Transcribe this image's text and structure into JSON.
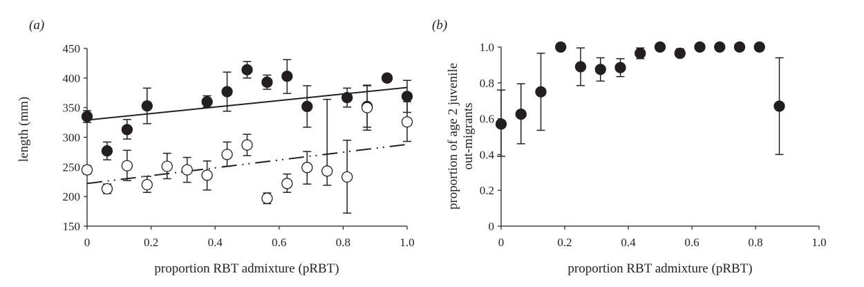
{
  "chart_data": [
    {
      "panel_label": "(a)",
      "type": "scatter",
      "xlabel": "proportion RBT admixture (pRBT)",
      "ylabel": "length (mm)",
      "xlim": [
        0,
        1.0
      ],
      "ylim": [
        150,
        450
      ],
      "xticks": [
        "0",
        "0.2",
        "0.4",
        "0.6",
        "0.8",
        "1.0"
      ],
      "yticks": [
        "150",
        "200",
        "250",
        "300",
        "350",
        "400",
        "450"
      ],
      "grid": false,
      "series": [
        {
          "marker": "filled-circle",
          "color": "#231f20",
          "points": [
            {
              "x": 0.0,
              "y": 335,
              "lo": 325,
              "hi": 345
            },
            {
              "x": 0.0625,
              "y": 277,
              "lo": 262,
              "hi": 292
            },
            {
              "x": 0.125,
              "y": 313,
              "lo": 297,
              "hi": 330
            },
            {
              "x": 0.1875,
              "y": 353,
              "lo": 323,
              "hi": 383
            },
            {
              "x": 0.375,
              "y": 360,
              "lo": 351,
              "hi": 370
            },
            {
              "x": 0.4375,
              "y": 377,
              "lo": 344,
              "hi": 410
            },
            {
              "x": 0.5,
              "y": 414,
              "lo": 400,
              "hi": 428
            },
            {
              "x": 0.5625,
              "y": 393,
              "lo": 381,
              "hi": 405
            },
            {
              "x": 0.625,
              "y": 403,
              "lo": 374,
              "hi": 431
            },
            {
              "x": 0.6875,
              "y": 352,
              "lo": 317,
              "hi": 387
            },
            {
              "x": 0.8125,
              "y": 367,
              "lo": 351,
              "hi": 383
            },
            {
              "x": 0.875,
              "y": 352,
              "lo": 317,
              "hi": 387
            },
            {
              "x": 0.9375,
              "y": 400,
              "lo": 395,
              "hi": 406
            },
            {
              "x": 1.0,
              "y": 369,
              "lo": 342,
              "hi": 396
            }
          ],
          "trend": {
            "style": "solid",
            "x": [
              0,
              1.0
            ],
            "y": [
              329,
              384
            ]
          }
        },
        {
          "marker": "open-circle",
          "color": "#231f20",
          "points": [
            {
              "x": 0.0,
              "y": 245,
              "lo": 238,
              "hi": 252
            },
            {
              "x": 0.0625,
              "y": 213,
              "lo": 205,
              "hi": 221
            },
            {
              "x": 0.125,
              "y": 252,
              "lo": 227,
              "hi": 278
            },
            {
              "x": 0.1875,
              "y": 220,
              "lo": 207,
              "hi": 234
            },
            {
              "x": 0.25,
              "y": 251,
              "lo": 230,
              "hi": 273
            },
            {
              "x": 0.3125,
              "y": 245,
              "lo": 224,
              "hi": 266
            },
            {
              "x": 0.375,
              "y": 236,
              "lo": 211,
              "hi": 260
            },
            {
              "x": 0.4375,
              "y": 271,
              "lo": 251,
              "hi": 292
            },
            {
              "x": 0.5,
              "y": 287,
              "lo": 269,
              "hi": 305
            },
            {
              "x": 0.5625,
              "y": 197,
              "lo": 188,
              "hi": 206
            },
            {
              "x": 0.625,
              "y": 222,
              "lo": 207,
              "hi": 238
            },
            {
              "x": 0.6875,
              "y": 249,
              "lo": 221,
              "hi": 276
            },
            {
              "x": 0.75,
              "y": 243,
              "lo": 219,
              "hi": 364
            },
            {
              "x": 0.8125,
              "y": 233,
              "lo": 172,
              "hi": 295
            },
            {
              "x": 0.875,
              "y": 350,
              "lo": 312,
              "hi": 388
            },
            {
              "x": 1.0,
              "y": 326,
              "lo": 293,
              "hi": 360
            }
          ],
          "trend": {
            "style": "dash-dot-dot",
            "x": [
              0,
              1.0
            ],
            "y": [
              222,
              288
            ]
          }
        }
      ]
    },
    {
      "panel_label": "(b)",
      "type": "scatter",
      "xlabel": "proportion RBT admixture (pRBT)",
      "ylabel": [
        "proportion of age 2 juvenile",
        "out-migrants"
      ],
      "xlim": [
        0,
        1.0
      ],
      "ylim": [
        0,
        1.0
      ],
      "xticks": [
        "0",
        "0.2",
        "0.4",
        "0.6",
        "0.8",
        "1.0"
      ],
      "yticks": [
        "0",
        "0.2",
        "0.4",
        "0.6",
        "0.8",
        "1.0"
      ],
      "grid": false,
      "series": [
        {
          "marker": "filled-circle",
          "color": "#231f20",
          "points": [
            {
              "x": 0.0,
              "y": 0.57,
              "lo": 0.39,
              "hi": 0.76
            },
            {
              "x": 0.0625,
              "y": 0.625,
              "lo": 0.46,
              "hi": 0.795
            },
            {
              "x": 0.125,
              "y": 0.75,
              "lo": 0.535,
              "hi": 0.965
            },
            {
              "x": 0.1875,
              "y": 1.0,
              "lo": 1.0,
              "hi": 1.0
            },
            {
              "x": 0.25,
              "y": 0.89,
              "lo": 0.785,
              "hi": 0.995
            },
            {
              "x": 0.3125,
              "y": 0.875,
              "lo": 0.81,
              "hi": 0.94
            },
            {
              "x": 0.375,
              "y": 0.885,
              "lo": 0.835,
              "hi": 0.935
            },
            {
              "x": 0.4375,
              "y": 0.965,
              "lo": 0.935,
              "hi": 0.995
            },
            {
              "x": 0.5,
              "y": 1.0,
              "lo": 1.0,
              "hi": 1.0
            },
            {
              "x": 0.5625,
              "y": 0.965,
              "lo": 0.945,
              "hi": 0.99
            },
            {
              "x": 0.625,
              "y": 1.0,
              "lo": 1.0,
              "hi": 1.0
            },
            {
              "x": 0.6875,
              "y": 1.0,
              "lo": 1.0,
              "hi": 1.0
            },
            {
              "x": 0.75,
              "y": 1.0,
              "lo": 1.0,
              "hi": 1.0
            },
            {
              "x": 0.8125,
              "y": 1.0,
              "lo": 1.0,
              "hi": 1.0
            },
            {
              "x": 0.875,
              "y": 0.67,
              "lo": 0.4,
              "hi": 0.94
            }
          ]
        }
      ]
    }
  ]
}
